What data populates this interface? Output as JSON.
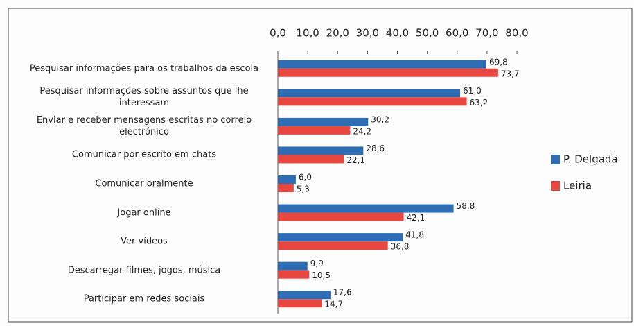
{
  "chart_data": {
    "type": "bar",
    "orientation": "horizontal",
    "categories": [
      "Pesquisar informações para os trabalhos da escola",
      "Pesquisar informações sobre assuntos que lhe interessam",
      "Enviar e receber mensagens escritas no correio electrónico",
      "Comunicar por escrito em chats",
      "Comunicar oralmente",
      "Jogar online",
      "Ver vídeos",
      "Descarregar filmes, jogos, música",
      "Participar em redes sociais"
    ],
    "series": [
      {
        "name": "P. Delgada",
        "color": "#2e6db4",
        "values": [
          69.8,
          61.0,
          30.2,
          28.6,
          6.0,
          58.8,
          41.8,
          9.9,
          17.6
        ],
        "value_labels": [
          "69,8",
          "61,0",
          "30,2",
          "28,6",
          "6,0",
          "58,8",
          "41,8",
          "9,9",
          "17,6"
        ]
      },
      {
        "name": "Leiria",
        "color": "#e8473f",
        "values": [
          73.7,
          63.2,
          24.2,
          22.1,
          5.3,
          42.1,
          36.8,
          10.5,
          14.7
        ],
        "value_labels": [
          "73,7",
          "63,2",
          "24,2",
          "22,1",
          "5,3",
          "42,1",
          "36,8",
          "10,5",
          "14,7"
        ]
      }
    ],
    "xlim": [
      0,
      80
    ],
    "xticks": [
      {
        "value": 0,
        "label": "0,0"
      },
      {
        "value": 10,
        "label": "10,0"
      },
      {
        "value": 20,
        "label": "20,0"
      },
      {
        "value": 30,
        "label": "30,0"
      },
      {
        "value": 40,
        "label": "40,0"
      },
      {
        "value": 50,
        "label": "50,0"
      },
      {
        "value": 60,
        "label": "60,0"
      },
      {
        "value": 70,
        "label": "70,0"
      },
      {
        "value": 80,
        "label": "80,0"
      }
    ],
    "grid": false,
    "legend": "right"
  }
}
